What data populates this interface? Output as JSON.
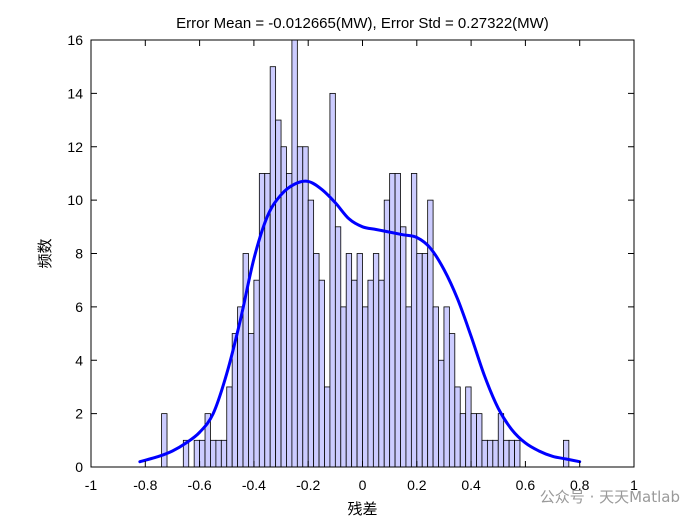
{
  "chart_data": {
    "type": "bar",
    "title": "Error Mean = -0.012665(MW), Error Std = 0.27322(MW)",
    "xlabel": "残差",
    "ylabel": "频数",
    "xlim": [
      -1,
      1
    ],
    "ylim": [
      0,
      16
    ],
    "xticks": [
      -1,
      -0.8,
      -0.6,
      -0.4,
      -0.2,
      0,
      0.2,
      0.4,
      0.6,
      0.8,
      1
    ],
    "xtick_labels": [
      "-1",
      "-0.8",
      "-0.6",
      "-0.4",
      "-0.2",
      "0",
      "0.2",
      "0.4",
      "0.6",
      "0.8",
      "1"
    ],
    "yticks": [
      0,
      2,
      4,
      6,
      8,
      10,
      12,
      14,
      16
    ],
    "ytick_labels": [
      "0",
      "2",
      "4",
      "6",
      "8",
      "10",
      "12",
      "14",
      "16"
    ],
    "bin_width": 0.02,
    "bin_starts": [
      -0.74,
      -0.66,
      -0.62,
      -0.6,
      -0.58,
      -0.56,
      -0.54,
      -0.52,
      -0.5,
      -0.48,
      -0.46,
      -0.44,
      -0.42,
      -0.4,
      -0.38,
      -0.36,
      -0.34,
      -0.32,
      -0.3,
      -0.28,
      -0.26,
      -0.24,
      -0.22,
      -0.2,
      -0.18,
      -0.16,
      -0.14,
      -0.12,
      -0.1,
      -0.08,
      -0.06,
      -0.04,
      -0.02,
      0.0,
      0.02,
      0.04,
      0.06,
      0.08,
      0.1,
      0.12,
      0.14,
      0.16,
      0.18,
      0.2,
      0.22,
      0.24,
      0.26,
      0.28,
      0.3,
      0.32,
      0.34,
      0.36,
      0.38,
      0.4,
      0.42,
      0.44,
      0.46,
      0.48,
      0.5,
      0.52,
      0.54,
      0.56,
      0.74
    ],
    "counts": [
      2,
      1,
      1,
      1,
      2,
      1,
      1,
      1,
      3,
      5,
      6,
      8,
      5,
      7,
      11,
      11,
      15,
      13,
      12,
      11,
      16,
      12,
      12,
      10,
      8,
      7,
      3,
      14,
      9,
      6,
      8,
      7,
      8,
      6,
      7,
      8,
      7,
      10,
      11,
      11,
      9,
      6,
      11,
      8,
      8,
      10,
      6,
      4,
      6,
      5,
      3,
      2,
      3,
      2,
      2,
      1,
      1,
      1,
      2,
      1,
      1,
      1,
      1
    ],
    "bar_fill": "#CCCCFF",
    "bar_edge": "#000000",
    "fit_curve": {
      "name": "kernel density fit",
      "color": "#0000FF",
      "x": [
        -0.82,
        -0.75,
        -0.7,
        -0.65,
        -0.6,
        -0.55,
        -0.5,
        -0.45,
        -0.4,
        -0.35,
        -0.3,
        -0.25,
        -0.2,
        -0.15,
        -0.1,
        -0.05,
        0.0,
        0.05,
        0.1,
        0.15,
        0.2,
        0.25,
        0.3,
        0.35,
        0.4,
        0.45,
        0.5,
        0.55,
        0.6,
        0.65,
        0.7,
        0.75,
        0.8
      ],
      "y": [
        0.2,
        0.4,
        0.6,
        0.9,
        1.3,
        2.0,
        3.5,
        5.5,
        7.8,
        9.4,
        10.2,
        10.6,
        10.7,
        10.4,
        9.9,
        9.3,
        9.0,
        8.9,
        8.8,
        8.7,
        8.6,
        8.2,
        7.4,
        6.3,
        4.9,
        3.4,
        2.2,
        1.4,
        0.9,
        0.6,
        0.4,
        0.3,
        0.2
      ]
    }
  },
  "watermark": {
    "text": "公众号 · 天天Matlab"
  }
}
